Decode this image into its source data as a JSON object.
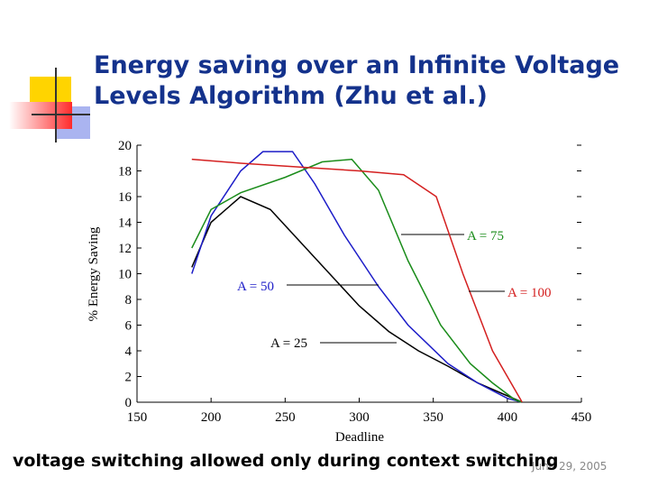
{
  "chart_data": {
    "type": "line",
    "title": "Energy saving over an Infinite Voltage Levels Algorithm (Zhu et al.)",
    "xlabel": "Deadline",
    "ylabel": "% Energy Saving",
    "xlim": [
      150,
      450
    ],
    "xticks": [
      150,
      200,
      250,
      300,
      350,
      400,
      450
    ],
    "ylim": [
      0,
      20
    ],
    "yticks": [
      0,
      2,
      4,
      6,
      8,
      10,
      12,
      14,
      16,
      18,
      20
    ],
    "series": [
      {
        "name": "A = 25",
        "color": "#000000",
        "x": [
          187,
          200,
          220,
          240,
          260,
          280,
          300,
          320,
          340,
          360,
          380,
          400,
          410
        ],
        "values": [
          10.5,
          14,
          16,
          15,
          12.5,
          10,
          7.5,
          5.5,
          4,
          2.8,
          1.5,
          0.5,
          0
        ]
      },
      {
        "name": "A = 50",
        "color": "#1c1cc8",
        "x": [
          187,
          200,
          220,
          235,
          255,
          270,
          290,
          313,
          333,
          360,
          380,
          400,
          410
        ],
        "values": [
          10,
          14.5,
          18,
          19.5,
          19.5,
          17,
          13,
          9,
          6,
          3,
          1.5,
          0.3,
          0
        ]
      },
      {
        "name": "A = 75",
        "color": "#1a8c1a",
        "x": [
          187,
          200,
          220,
          250,
          275,
          295,
          313,
          333,
          355,
          375,
          390,
          405,
          410
        ],
        "values": [
          12,
          15,
          16.3,
          17.5,
          18.7,
          18.9,
          16.5,
          11,
          6,
          3,
          1.5,
          0.2,
          0
        ]
      },
      {
        "name": "A = 100",
        "color": "#d42020",
        "x": [
          187,
          220,
          260,
          300,
          330,
          352,
          370,
          390,
          400,
          410
        ],
        "values": [
          18.9,
          18.6,
          18.3,
          18,
          17.7,
          16,
          10,
          4,
          2,
          0
        ]
      }
    ]
  },
  "footer": "voltage switching allowed only during context switching",
  "date": "June 29, 2005"
}
